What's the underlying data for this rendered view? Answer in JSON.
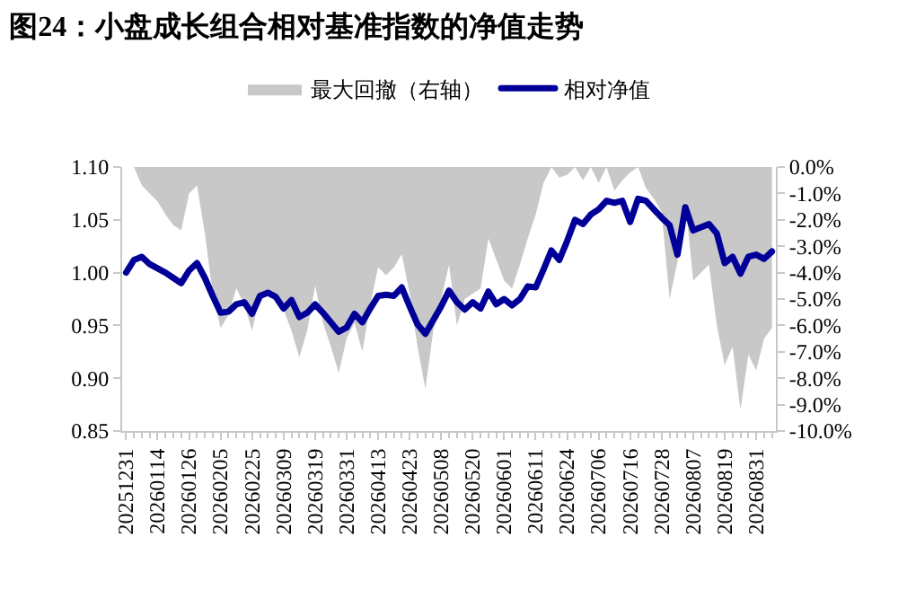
{
  "chart_data": {
    "type": "line",
    "title": "图24：小盘成长组合相对基准指数的净值走势",
    "categories": [
      "20251231",
      null,
      null,
      null,
      "20260114",
      null,
      null,
      null,
      "20260126",
      null,
      null,
      null,
      "20260205",
      null,
      null,
      null,
      "20260225",
      null,
      null,
      null,
      "20260309",
      null,
      null,
      null,
      "20260319",
      null,
      null,
      null,
      "20260331",
      null,
      null,
      null,
      "20260413",
      null,
      null,
      null,
      "20260423",
      null,
      null,
      null,
      "20260508",
      null,
      null,
      null,
      "20260520",
      null,
      null,
      null,
      "20260601",
      null,
      null,
      null,
      "20260611",
      null,
      null,
      null,
      "20260624",
      null,
      null,
      null,
      "20260706",
      null,
      null,
      null,
      "20260716",
      null,
      null,
      null,
      "20260728",
      null,
      null,
      null,
      "20260807",
      null,
      null,
      null,
      "20260819",
      null,
      null,
      null,
      "20260831",
      null,
      null
    ],
    "series": [
      {
        "name": "最大回撤（右轴）",
        "type": "area",
        "axis": "y2",
        "color": "#c8c8c8",
        "values": [
          0,
          0,
          -0.7,
          -1.0,
          -1.3,
          -1.8,
          -2.2,
          -2.4,
          -1.0,
          -0.7,
          -2.5,
          -4.8,
          -6.1,
          -5.6,
          -4.6,
          -5.2,
          -6.2,
          -4.8,
          -4.8,
          -5.0,
          -5.4,
          -6.2,
          -7.2,
          -6.2,
          -4.5,
          -5.9,
          -6.8,
          -7.8,
          -6.5,
          -5.9,
          -7.0,
          -5.2,
          -3.8,
          -4.1,
          -3.8,
          -3.3,
          -4.8,
          -6.8,
          -8.4,
          -6.2,
          -5.0,
          -3.7,
          -6.0,
          -5.0,
          -4.8,
          -4.6,
          -2.7,
          -3.5,
          -4.3,
          -4.6,
          -3.7,
          -2.7,
          -1.8,
          -0.6,
          0,
          -0.4,
          -0.3,
          0,
          -0.5,
          0,
          -0.6,
          0,
          -0.9,
          -0.5,
          -0.2,
          0,
          -0.8,
          -1.2,
          -1.7,
          -5.0,
          -3.6,
          -1.3,
          -4.3,
          -4.0,
          -3.7,
          -6.0,
          -7.5,
          -6.8,
          -9.2,
          -7.1,
          -7.7,
          -6.5,
          -6.1
        ]
      },
      {
        "name": "相对净值",
        "color": "#000099",
        "values": [
          1.0,
          1.012,
          1.015,
          1.008,
          1.004,
          1.0,
          0.995,
          0.99,
          1.002,
          1.009,
          0.995,
          0.978,
          0.962,
          0.963,
          0.97,
          0.972,
          0.961,
          0.978,
          0.981,
          0.977,
          0.966,
          0.974,
          0.958,
          0.962,
          0.97,
          0.962,
          0.953,
          0.944,
          0.948,
          0.961,
          0.953,
          0.966,
          0.978,
          0.979,
          0.978,
          0.986,
          0.968,
          0.951,
          0.942,
          0.955,
          0.968,
          0.983,
          0.972,
          0.965,
          0.972,
          0.966,
          0.982,
          0.97,
          0.975,
          0.969,
          0.975,
          0.987,
          0.986,
          1.003,
          1.021,
          1.012,
          1.03,
          1.05,
          1.046,
          1.055,
          1.06,
          1.068,
          1.066,
          1.068,
          1.048,
          1.07,
          1.068,
          1.06,
          1.052,
          1.045,
          1.017,
          1.062,
          1.04,
          1.043,
          1.046,
          1.037,
          1.009,
          1.015,
          0.999,
          1.015,
          1.017,
          1.013,
          1.02
        ]
      }
    ],
    "ylim": [
      0.85,
      1.1
    ],
    "yticks": [
      {
        "value": 0.85,
        "label": "0.85"
      },
      {
        "value": 0.9,
        "label": "0.90"
      },
      {
        "value": 0.95,
        "label": "0.95"
      },
      {
        "value": 1.0,
        "label": "1.00"
      },
      {
        "value": 1.05,
        "label": "1.05"
      },
      {
        "value": 1.1,
        "label": "1.10"
      }
    ],
    "y2lim": [
      -10,
      0
    ],
    "y2ticks": [
      {
        "value": 0,
        "label": "0.0%"
      },
      {
        "value": -1,
        "label": "-1.0%"
      },
      {
        "value": -2,
        "label": "-2.0%"
      },
      {
        "value": -3,
        "label": "-3.0%"
      },
      {
        "value": -4,
        "label": "-4.0%"
      },
      {
        "value": -5,
        "label": "-5.0%"
      },
      {
        "value": -6,
        "label": "-6.0%"
      },
      {
        "value": -7,
        "label": "-7.0%"
      },
      {
        "value": -8,
        "label": "-8.0%"
      },
      {
        "value": -9,
        "label": "-9.0%"
      },
      {
        "value": -10,
        "label": "-10.0%"
      }
    ],
    "legend": "top"
  }
}
